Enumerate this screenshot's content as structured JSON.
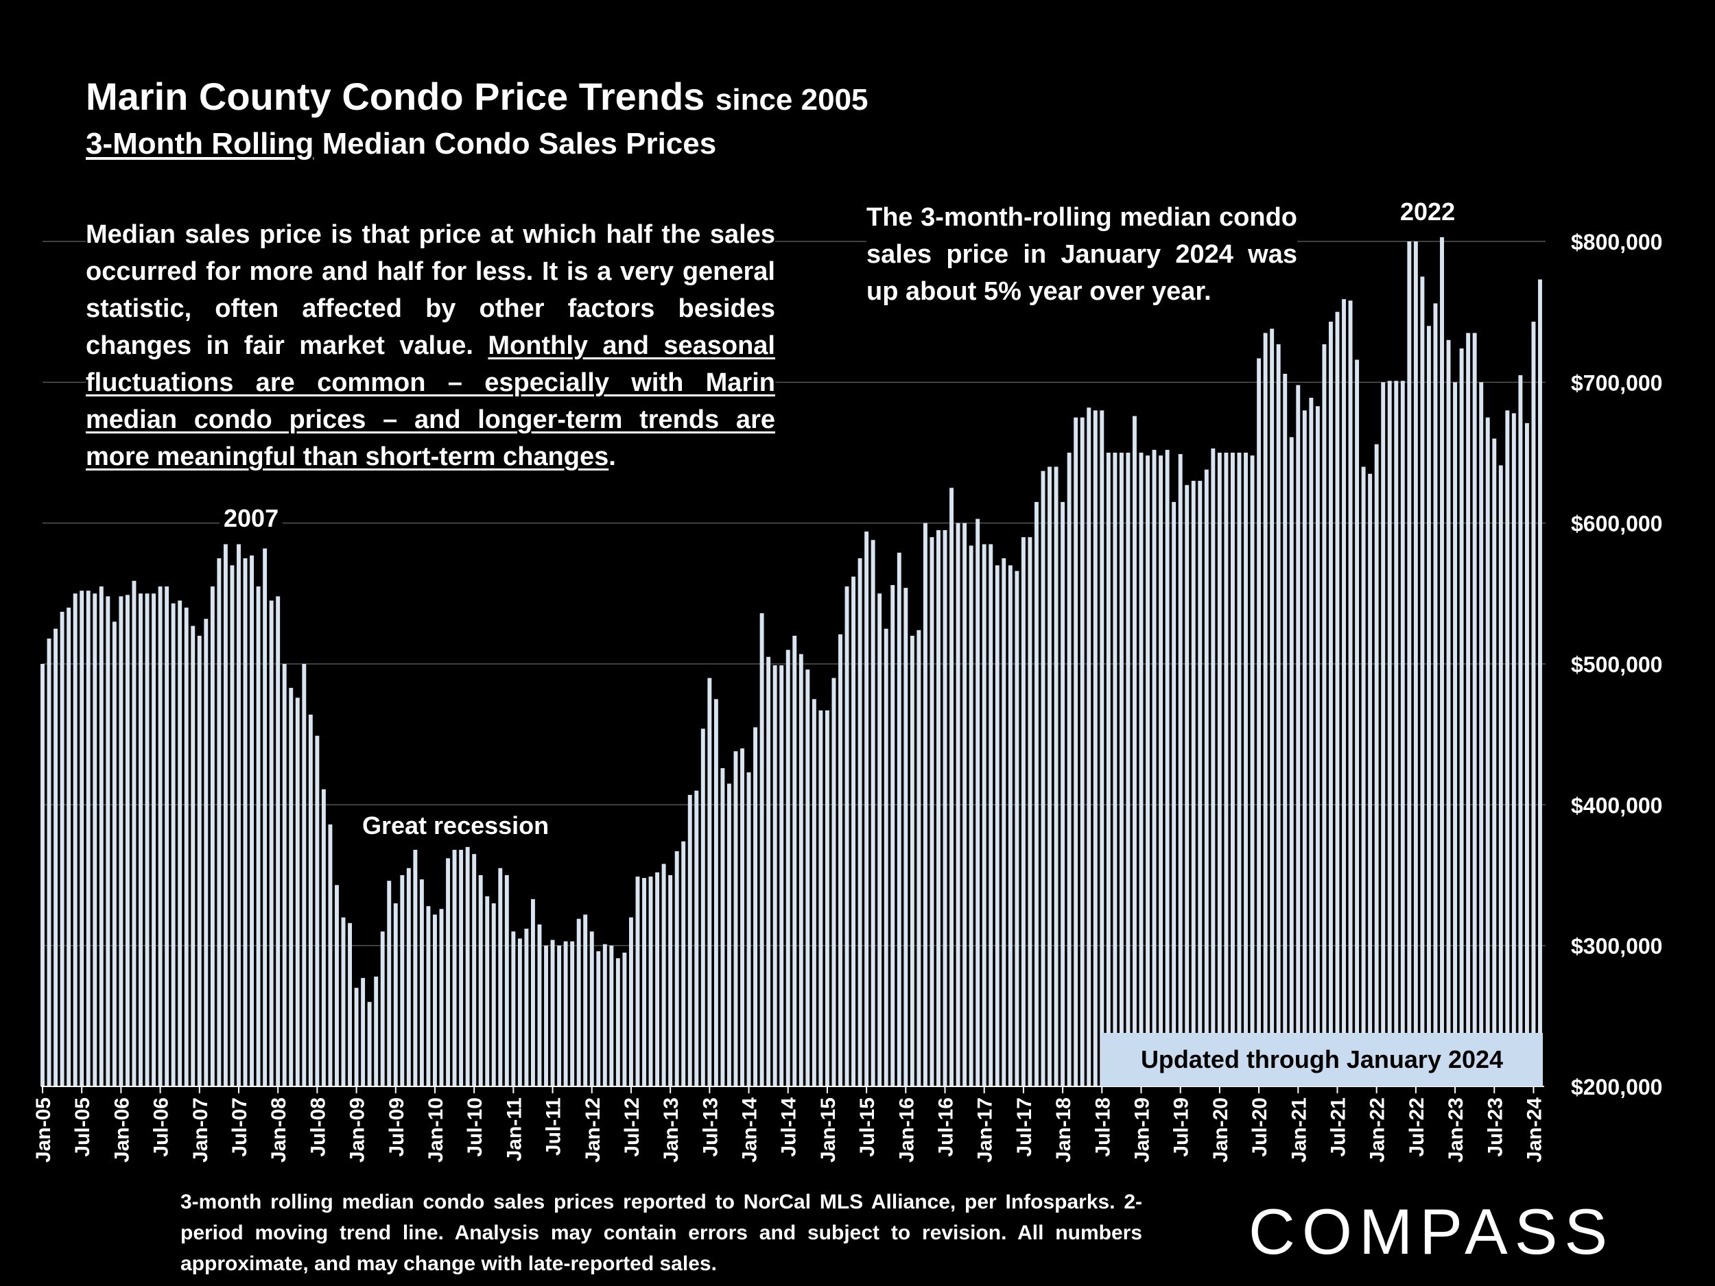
{
  "title": {
    "main": "Marin County Condo Price Trends",
    "since": "since 2005"
  },
  "subtitle": {
    "underlined": "3-Month Rolling",
    "rest": " Median Condo Sales Prices"
  },
  "note_left": {
    "plain": "Median sales price is that price at which half the sales occurred for more and half for less. It is a very general statistic, often affected by other factors besides changes in fair market value. ",
    "underlined": "Monthly and seasonal fluctuations are common – especially with Marin median condo prices – and longer-term trends are more meaningful than short-term changes",
    "end": "."
  },
  "note_right": "The 3-month-rolling median condo sales price in January 2024 was up about 5% year over year.",
  "annotations": {
    "y2007": "2007",
    "y2022": "2022",
    "recession": "Great recession"
  },
  "updated_badge": "Updated through January 2024",
  "footer": "3-month rolling median condo sales prices reported to NorCal MLS Alliance, per Infosparks. 2-period moving trend line. Analysis may contain errors and subject to revision. All numbers approximate, and may change with late-reported sales.",
  "logo": "COMPASS",
  "colors": {
    "bar": "#d9e4f1",
    "grid": "#555555",
    "badge": "#c9dcef"
  },
  "chart_data": {
    "type": "bar",
    "title": "Marin County Condo Price Trends since 2005",
    "subtitle": "3-Month Rolling Median Condo Sales Prices",
    "xlabel": "",
    "ylabel": "",
    "ylim": [
      200000,
      800000
    ],
    "yticks": [
      200000,
      300000,
      400000,
      500000,
      600000,
      700000,
      800000
    ],
    "ytick_labels": [
      "$200,000",
      "$300,000",
      "$400,000",
      "$500,000",
      "$600,000",
      "$700,000",
      "$800,000"
    ],
    "start": "Jan-05",
    "end": "Jan-24",
    "x_tick_labels": [
      "Jan-05",
      "Jul-05",
      "Jan-06",
      "Jul-06",
      "Jan-07",
      "Jul-07",
      "Jan-08",
      "Jul-08",
      "Jan-09",
      "Jul-09",
      "Jan-10",
      "Jul-10",
      "Jan-11",
      "Jul-11",
      "Jan-12",
      "Jul-12",
      "Jan-13",
      "Jul-13",
      "Jan-14",
      "Jul-14",
      "Jan-15",
      "Jul-15",
      "Jan-16",
      "Jul-16",
      "Jan-17",
      "Jul-17",
      "Jan-18",
      "Jul-18",
      "Jan-19",
      "Jul-19",
      "Jan-20",
      "Jul-20",
      "Jan-21",
      "Jul-21",
      "Jan-22",
      "Jul-22",
      "Jan-23",
      "Jul-23",
      "Jan-24"
    ],
    "values": [
      500000,
      518000,
      525000,
      537000,
      540000,
      550000,
      552000,
      552000,
      550000,
      555000,
      548000,
      530000,
      548000,
      549000,
      559000,
      550000,
      550000,
      550000,
      555000,
      555000,
      543000,
      545000,
      540000,
      527000,
      520000,
      532000,
      555000,
      575000,
      585000,
      570000,
      585000,
      575000,
      577000,
      555000,
      582000,
      545000,
      548000,
      500000,
      483000,
      476000,
      500000,
      464000,
      449000,
      411000,
      386000,
      343000,
      320000,
      316000,
      270000,
      277000,
      260000,
      278000,
      310000,
      346000,
      330000,
      350000,
      355000,
      368000,
      347000,
      328000,
      322000,
      326000,
      362000,
      368000,
      368000,
      370000,
      365000,
      350000,
      335000,
      330000,
      355000,
      350000,
      310000,
      305000,
      312000,
      333000,
      315000,
      300000,
      304000,
      300000,
      303000,
      303000,
      319000,
      322000,
      310000,
      296000,
      301000,
      300000,
      291000,
      295000,
      320000,
      349000,
      348000,
      349000,
      352000,
      358000,
      350000,
      367000,
      374000,
      407000,
      410000,
      454000,
      490000,
      475000,
      426000,
      415000,
      438000,
      440000,
      423000,
      455000,
      536000,
      505000,
      499000,
      499000,
      510000,
      520000,
      507000,
      496000,
      475000,
      467000,
      467000,
      490000,
      521000,
      555000,
      562000,
      575000,
      594000,
      588000,
      550000,
      525000,
      556000,
      579000,
      554000,
      520000,
      524000,
      600000,
      590000,
      595000,
      595000,
      625000,
      600000,
      600000,
      584000,
      603000,
      585000,
      585000,
      570000,
      575000,
      570000,
      566000,
      590000,
      590000,
      615000,
      637000,
      640000,
      640000,
      615000,
      650000,
      675000,
      675000,
      682000,
      680000,
      680000,
      650000,
      650000,
      650000,
      650000,
      676000,
      650000,
      648000,
      652000,
      648000,
      652000,
      615000,
      649000,
      627000,
      630000,
      630000,
      638000,
      653000,
      650000,
      650000,
      650000,
      650000,
      650000,
      648000,
      717000,
      735000,
      738000,
      727000,
      706000,
      661000,
      698000,
      680000,
      689000,
      683000,
      727000,
      743000,
      750000,
      759000,
      758000,
      716000,
      640000,
      635000,
      656000,
      700000,
      701000,
      701000,
      701000,
      800000,
      800000,
      775000,
      740000,
      756000,
      803000,
      730000,
      700000,
      724000,
      735000,
      735000,
      700000,
      675000,
      660000,
      641000,
      680000,
      678000,
      705000,
      671000,
      743000,
      773000
    ]
  }
}
